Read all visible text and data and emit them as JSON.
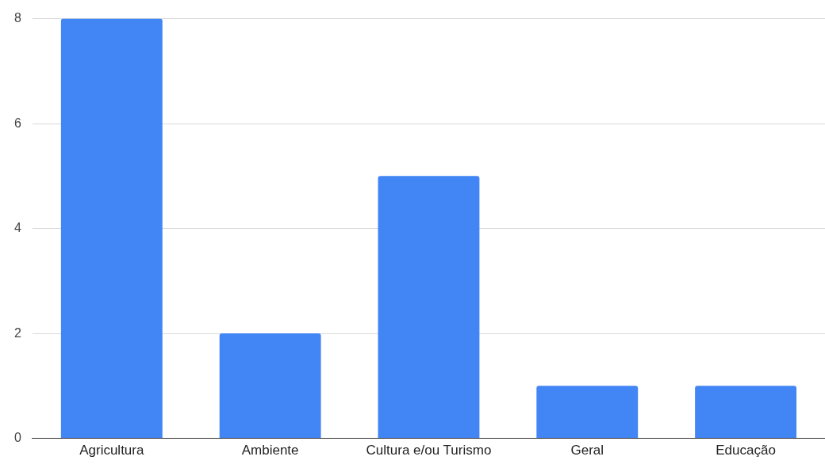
{
  "chart_data": {
    "type": "bar",
    "categories": [
      "Agricultura",
      "Ambiente",
      "Cultura e/ou Turismo",
      "Geral",
      "Educação"
    ],
    "values": [
      8,
      2,
      5,
      1,
      1
    ],
    "color": "#4285f4",
    "ylim": [
      0,
      8
    ],
    "yticks": [
      0,
      2,
      4,
      6,
      8
    ],
    "grid": "y"
  }
}
